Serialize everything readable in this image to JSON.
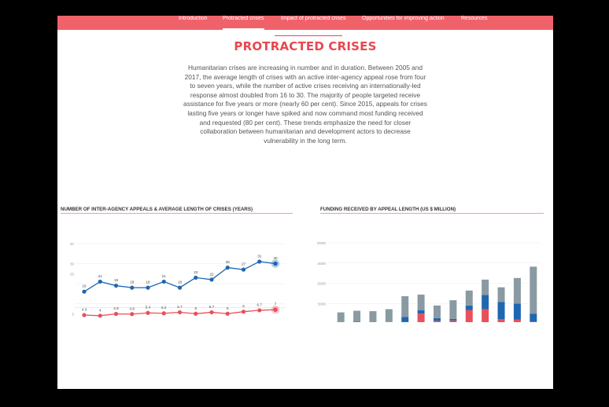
{
  "nav": {
    "items": [
      "Introduction",
      "Protracted crises",
      "Impact of protracted crises",
      "Opportunities for improving action",
      "Resources"
    ],
    "active_index": 1
  },
  "page": {
    "title": "PROTRACTED CRISES",
    "intro": "Humanitarian crises are increasing in number and in duration. Between 2005 and 2017, the average length of crises with an active inter-agency appeal rose from four to seven years, while the number of active crises receiving an internationally-led response almost doubled from 16 to 30. The majority of people targeted receive assistance for five years or more (nearly 60 per cent). Since 2015, appeals for crises lasting five years or longer have spiked and now command most funding received and requested (80 per cent). These trends emphasize the need for closer collaboration between humanitarian and development actors to decrease vulnerability in the long term."
  },
  "colors": {
    "accent": "#e8484f",
    "nav": "#f0626a",
    "blue": "#1f67b1",
    "red": "#e8505b",
    "grey": "#8a9aa3"
  },
  "chart_data": [
    {
      "type": "line",
      "title": "NUMBER OF INTER-AGENCY APPEALS & AVERAGE LENGTH OF CRISES (YEARS)",
      "ylim": [
        0,
        40
      ],
      "yticks": [
        0,
        5,
        25,
        30,
        40
      ],
      "series": [
        {
          "values": [
            16,
            21,
            19,
            18,
            18,
            21,
            18,
            23,
            22,
            28,
            27,
            31,
            30
          ]
        },
        {
          "values": [
            4.3,
            4,
            4.9,
            4.8,
            5.4,
            5.2,
            5.7,
            5,
            5.7,
            5,
            6,
            6.7,
            7
          ]
        }
      ]
    },
    {
      "type": "bar",
      "title": "FUNDING RECEIVED BY APPEAL LENGTH (US $ MILLION)",
      "ylim": [
        0,
        20000
      ],
      "yticks": [
        0,
        5000,
        10000,
        15000,
        20000
      ],
      "categories_count": 13,
      "segments": [
        {
          "values": [
            200,
            300,
            200,
            200,
            400,
            2500,
            700,
            800,
            3400,
            3600,
            1100,
            1000,
            500
          ]
        },
        {
          "values": [
            100,
            200,
            100,
            200,
            1300,
            800,
            700,
            400,
            1100,
            3500,
            4300,
            4000,
            2000
          ]
        },
        {
          "values": [
            2500,
            2700,
            2800,
            3200,
            5100,
            3900,
            3100,
            4600,
            3700,
            3800,
            3600,
            6300,
            11600
          ]
        }
      ]
    }
  ]
}
